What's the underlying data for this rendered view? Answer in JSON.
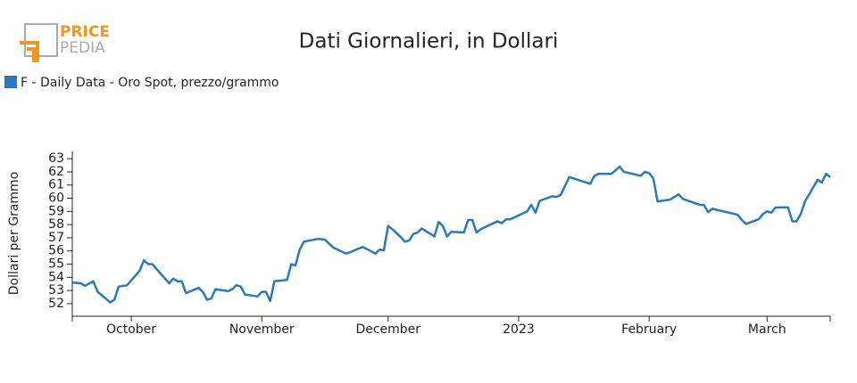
{
  "logo": {
    "line1": "PRICE",
    "line2": "PEDIA"
  },
  "chart_data": {
    "type": "line",
    "title": "Dati Giornalieri, in Dollari",
    "y_label": "Dollari per Grammo",
    "x": [
      "2022-09-17",
      "2022-09-19",
      "2022-09-20",
      "2022-09-22",
      "2022-09-23",
      "2022-09-26",
      "2022-09-27",
      "2022-09-28",
      "2022-09-30",
      "2022-10-03",
      "2022-10-04",
      "2022-10-05",
      "2022-10-06",
      "2022-10-10",
      "2022-10-11",
      "2022-10-12",
      "2022-10-13",
      "2022-10-14",
      "2022-10-17",
      "2022-10-18",
      "2022-10-19",
      "2022-10-20",
      "2022-10-21",
      "2022-10-24",
      "2022-10-25",
      "2022-10-26",
      "2022-10-27",
      "2022-10-28",
      "2022-10-31",
      "2022-11-01",
      "2022-11-02",
      "2022-11-03",
      "2022-11-04",
      "2022-11-07",
      "2022-11-08",
      "2022-11-09",
      "2022-11-10",
      "2022-11-11",
      "2022-11-14",
      "2022-11-15",
      "2022-11-16",
      "2022-11-18",
      "2022-11-21",
      "2022-11-22",
      "2022-11-23",
      "2022-11-25",
      "2022-11-28",
      "2022-11-29",
      "2022-11-30",
      "2022-12-01",
      "2022-12-02",
      "2022-12-04",
      "2022-12-05",
      "2022-12-06",
      "2022-12-07",
      "2022-12-08",
      "2022-12-09",
      "2022-12-12",
      "2022-12-13",
      "2022-12-14",
      "2022-12-15",
      "2022-12-16",
      "2022-12-19",
      "2022-12-20",
      "2022-12-21",
      "2022-12-22",
      "2022-12-23",
      "2022-12-27",
      "2022-12-28",
      "2022-12-29",
      "2022-12-30",
      "2023-01-03",
      "2023-01-04",
      "2023-01-05",
      "2023-01-06",
      "2023-01-09",
      "2023-01-10",
      "2023-01-11",
      "2023-01-13",
      "2023-01-18",
      "2023-01-19",
      "2023-01-20",
      "2023-01-23",
      "2023-01-24",
      "2023-01-25",
      "2023-01-26",
      "2023-01-30",
      "2023-01-31",
      "2023-02-01",
      "2023-02-02",
      "2023-02-03",
      "2023-02-06",
      "2023-02-07",
      "2023-02-08",
      "2023-02-09",
      "2023-02-13",
      "2023-02-14",
      "2023-02-15",
      "2023-02-16",
      "2023-02-22",
      "2023-02-23",
      "2023-02-24",
      "2023-02-27",
      "2023-02-28",
      "2023-03-01",
      "2023-03-02",
      "2023-03-03",
      "2023-03-06",
      "2023-03-07",
      "2023-03-08",
      "2023-03-09",
      "2023-03-10",
      "2023-03-13",
      "2023-03-14",
      "2023-03-15",
      "2023-03-16"
    ],
    "series": [
      {
        "name": "F - Daily Data - Oro Spot, prezzo/grammo",
        "color": "#2a7ab9",
        "values": [
          53.6,
          53.55,
          53.35,
          53.7,
          52.9,
          52.1,
          52.3,
          53.3,
          53.4,
          54.5,
          55.3,
          55.0,
          55.0,
          53.55,
          53.9,
          53.7,
          53.7,
          52.8,
          53.2,
          52.9,
          52.3,
          52.4,
          53.1,
          52.95,
          53.1,
          53.4,
          53.3,
          52.7,
          52.55,
          52.9,
          52.9,
          52.2,
          53.7,
          53.8,
          55.0,
          54.9,
          56.1,
          56.7,
          56.9,
          56.9,
          56.85,
          56.25,
          55.8,
          55.9,
          56.05,
          56.3,
          55.8,
          56.1,
          56.05,
          57.9,
          57.65,
          57.05,
          56.7,
          56.8,
          57.3,
          57.4,
          57.7,
          57.1,
          58.2,
          57.9,
          57.1,
          57.45,
          57.4,
          58.35,
          58.35,
          57.4,
          57.65,
          58.25,
          58.1,
          58.4,
          58.4,
          59.0,
          59.5,
          58.9,
          59.8,
          60.15,
          60.1,
          60.25,
          61.6,
          61.1,
          61.7,
          61.85,
          61.85,
          62.1,
          62.4,
          62.0,
          61.7,
          62.0,
          61.9,
          61.5,
          59.75,
          59.9,
          60.1,
          60.3,
          59.95,
          59.5,
          59.5,
          58.95,
          59.2,
          58.75,
          58.35,
          58.05,
          58.4,
          58.8,
          59.0,
          58.9,
          59.3,
          59.3,
          58.25,
          58.25,
          58.8,
          59.75,
          61.4,
          61.2,
          61.85,
          61.6
        ]
      }
    ],
    "xlim": [
      "2022-09-17",
      "2023-03-16"
    ],
    "xticks": [
      {
        "value": "2022-10-01",
        "label": "October"
      },
      {
        "value": "2022-11-01",
        "label": "November"
      },
      {
        "value": "2022-12-01",
        "label": "December"
      },
      {
        "value": "2023-01-01",
        "label": "2023"
      },
      {
        "value": "2023-02-01",
        "label": "February"
      },
      {
        "value": "2023-03-01",
        "label": "March"
      }
    ],
    "ylim": [
      51.05,
      63.55
    ],
    "yticks": [
      52,
      53,
      54,
      55,
      56,
      57,
      58,
      59,
      60,
      61,
      62,
      63
    ],
    "grid": false,
    "legend": "top-left"
  }
}
